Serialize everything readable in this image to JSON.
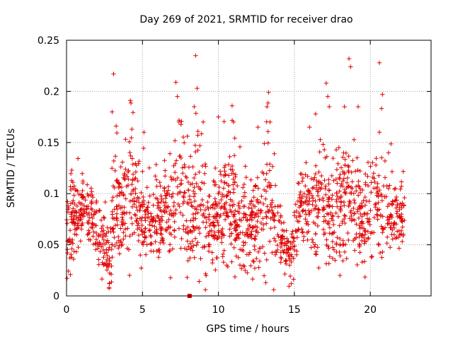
{
  "chart_data": {
    "type": "scatter",
    "title": "Day 269 of 2021, SRMTID for receiver drao",
    "xlabel": "GPS time / hours",
    "ylabel": "SRMTID / TECUs",
    "xlim": [
      0,
      24
    ],
    "ylim": [
      0,
      0.25
    ],
    "x_ticks": [
      0,
      5,
      10,
      15,
      20
    ],
    "x_tick_labels": [
      "0",
      "5",
      "10",
      "15",
      "20"
    ],
    "y_ticks": [
      0,
      0.05,
      0.1,
      0.15,
      0.2,
      0.25
    ],
    "y_tick_labels": [
      "0",
      "0.05",
      "0.1",
      "0.15",
      "0.2",
      "0.25"
    ],
    "grid": true,
    "marker": "plus",
    "series_color": "#e00000",
    "envelope": [
      {
        "t": 0.0,
        "mean": 0.055,
        "spread": 0.025
      },
      {
        "t": 0.5,
        "mean": 0.075,
        "spread": 0.03
      },
      {
        "t": 1.0,
        "mean": 0.085,
        "spread": 0.02
      },
      {
        "t": 1.5,
        "mean": 0.085,
        "spread": 0.02
      },
      {
        "t": 2.0,
        "mean": 0.065,
        "spread": 0.02
      },
      {
        "t": 2.5,
        "mean": 0.05,
        "spread": 0.02
      },
      {
        "t": 2.8,
        "mean": 0.03,
        "spread": 0.018
      },
      {
        "t": 3.2,
        "mean": 0.1,
        "spread": 0.05
      },
      {
        "t": 3.6,
        "mean": 0.09,
        "spread": 0.03
      },
      {
        "t": 4.2,
        "mean": 0.1,
        "spread": 0.04
      },
      {
        "t": 5.0,
        "mean": 0.075,
        "spread": 0.025
      },
      {
        "t": 6.0,
        "mean": 0.075,
        "spread": 0.025
      },
      {
        "t": 7.0,
        "mean": 0.09,
        "spread": 0.04
      },
      {
        "t": 7.5,
        "mean": 0.1,
        "spread": 0.045
      },
      {
        "t": 8.0,
        "mean": 0.085,
        "spread": 0.03
      },
      {
        "t": 8.6,
        "mean": 0.09,
        "spread": 0.045
      },
      {
        "t": 9.5,
        "mean": 0.065,
        "spread": 0.025
      },
      {
        "t": 10.5,
        "mean": 0.09,
        "spread": 0.04
      },
      {
        "t": 11.5,
        "mean": 0.07,
        "spread": 0.03
      },
      {
        "t": 12.5,
        "mean": 0.065,
        "spread": 0.025
      },
      {
        "t": 13.3,
        "mean": 0.1,
        "spread": 0.045
      },
      {
        "t": 14.0,
        "mean": 0.06,
        "spread": 0.02
      },
      {
        "t": 14.7,
        "mean": 0.04,
        "spread": 0.015
      },
      {
        "t": 15.3,
        "mean": 0.08,
        "spread": 0.025
      },
      {
        "t": 16.0,
        "mean": 0.085,
        "spread": 0.03
      },
      {
        "t": 16.7,
        "mean": 0.1,
        "spread": 0.045
      },
      {
        "t": 17.5,
        "mean": 0.075,
        "spread": 0.03
      },
      {
        "t": 18.5,
        "mean": 0.095,
        "spread": 0.04
      },
      {
        "t": 19.5,
        "mean": 0.075,
        "spread": 0.03
      },
      {
        "t": 20.5,
        "mean": 0.085,
        "spread": 0.04
      },
      {
        "t": 21.3,
        "mean": 0.08,
        "spread": 0.025
      },
      {
        "t": 22.2,
        "mean": 0.075,
        "spread": 0.02
      }
    ],
    "peaks": [
      [
        3.1,
        0.217
      ],
      [
        3.0,
        0.18
      ],
      [
        4.2,
        0.191
      ],
      [
        4.3,
        0.163
      ],
      [
        5.1,
        0.16
      ],
      [
        7.2,
        0.209
      ],
      [
        7.3,
        0.195
      ],
      [
        7.4,
        0.17
      ],
      [
        8.5,
        0.235
      ],
      [
        8.6,
        0.203
      ],
      [
        8.4,
        0.185
      ],
      [
        9.0,
        0.17
      ],
      [
        10.0,
        0.175
      ],
      [
        10.9,
        0.186
      ],
      [
        11.0,
        0.17
      ],
      [
        12.6,
        0.165
      ],
      [
        13.3,
        0.199
      ],
      [
        13.2,
        0.185
      ],
      [
        13.4,
        0.17
      ],
      [
        16.0,
        0.165
      ],
      [
        16.4,
        0.178
      ],
      [
        17.1,
        0.208
      ],
      [
        17.2,
        0.195
      ],
      [
        17.3,
        0.185
      ],
      [
        18.3,
        0.185
      ],
      [
        18.6,
        0.232
      ],
      [
        18.7,
        0.224
      ],
      [
        19.2,
        0.185
      ],
      [
        20.6,
        0.228
      ],
      [
        20.8,
        0.197
      ],
      [
        20.6,
        0.16
      ],
      [
        21.2,
        0.14
      ],
      [
        18.0,
        0.02
      ],
      [
        2.8,
        0.008
      ],
      [
        14.8,
        0.012
      ]
    ],
    "point_count": 1750,
    "t_range": [
      0.0,
      22.25
    ],
    "outlier_marker": {
      "x": 8.1,
      "y": 0.0
    }
  }
}
